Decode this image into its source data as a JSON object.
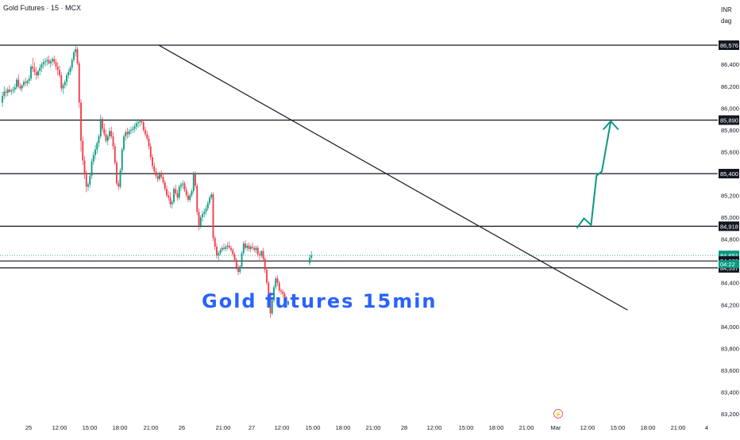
{
  "symbol_label": "Gold Futures · 15 · MCX",
  "currency": "INR",
  "mode": "dag",
  "watermark_text": "Gold  futures  15min",
  "colors": {
    "up": "#089981",
    "down": "#f23645",
    "line": "#131722",
    "arrow": "#089981",
    "grid": "#f0f3fa",
    "axis_text": "#131722",
    "watermark": "#2962ff"
  },
  "chart_data": {
    "type": "candlestick",
    "title": "Gold futures 15min",
    "x_ticks": [
      "25",
      "12:00",
      "15:00",
      "18:00",
      "21:00",
      "26",
      "21:00",
      "27",
      "12:00",
      "15:00",
      "18:00",
      "21:00",
      "28",
      "12:00",
      "15:00",
      "18:00",
      "21:00",
      "Mar",
      "12:00",
      "15:00",
      "18:00",
      "21:00",
      "4"
    ],
    "y_ticks": [
      86600,
      86400,
      86200,
      86000,
      85800,
      85600,
      85400,
      85200,
      85000,
      84800,
      84600,
      84400,
      84200,
      84000,
      83800,
      83600,
      83400,
      83200
    ],
    "ylim": [
      83200,
      86620
    ],
    "horizontal_levels": [
      86576,
      85890,
      85400,
      84918,
      84600,
      84537
    ],
    "current_price": 84651,
    "countdown": "04:22",
    "axis_labels": [
      {
        "value": 86576,
        "text": "86,576",
        "style": "black"
      },
      {
        "value": 85890,
        "text": "85,890",
        "style": "black"
      },
      {
        "value": 85400,
        "text": "85,400",
        "style": "black"
      },
      {
        "value": 84918,
        "text": "84,918",
        "style": "black"
      },
      {
        "value": 84651,
        "text": "84,651",
        "style": "green"
      },
      {
        "value": 84600,
        "text": "84,600",
        "style": "black"
      },
      {
        "value": 84537,
        "text": "84,537",
        "style": "black"
      }
    ],
    "trendline": [
      {
        "bar": 88,
        "price": 86576
      },
      {
        "bar": 350,
        "price": 84150
      }
    ],
    "projection_path": [
      {
        "bar": 322,
        "price": 84900
      },
      {
        "bar": 326,
        "price": 84990
      },
      {
        "bar": 330,
        "price": 84930
      },
      {
        "bar": 333,
        "price": 85380
      },
      {
        "bar": 336,
        "price": 85420
      },
      {
        "bar": 341,
        "price": 85880
      }
    ],
    "candles_ohlc": [
      [
        86050,
        86150,
        86010,
        86110
      ],
      [
        86110,
        86200,
        86080,
        86150
      ],
      [
        86150,
        86180,
        86100,
        86140
      ],
      [
        86140,
        86190,
        86110,
        86170
      ],
      [
        86170,
        86210,
        86140,
        86150
      ],
      [
        86150,
        86180,
        86120,
        86160
      ],
      [
        86160,
        86200,
        86130,
        86170
      ],
      [
        86170,
        86220,
        86140,
        86190
      ],
      [
        86190,
        86280,
        86170,
        86260
      ],
      [
        86260,
        86310,
        86180,
        86200
      ],
      [
        86200,
        86230,
        86160,
        86180
      ],
      [
        86180,
        86220,
        86150,
        86210
      ],
      [
        86210,
        86260,
        86190,
        86240
      ],
      [
        86240,
        86280,
        86200,
        86230
      ],
      [
        86230,
        86260,
        86200,
        86250
      ],
      [
        86250,
        86300,
        86220,
        86270
      ],
      [
        86270,
        86400,
        86250,
        86380
      ],
      [
        86380,
        86460,
        86330,
        86360
      ],
      [
        86360,
        86420,
        86300,
        86330
      ],
      [
        86330,
        86380,
        86260,
        86300
      ],
      [
        86300,
        86350,
        86270,
        86340
      ],
      [
        86340,
        86400,
        86300,
        86370
      ],
      [
        86370,
        86420,
        86330,
        86400
      ],
      [
        86400,
        86450,
        86360,
        86420
      ],
      [
        86420,
        86460,
        86380,
        86430
      ],
      [
        86430,
        86470,
        86390,
        86440
      ],
      [
        86440,
        86480,
        86400,
        86410
      ],
      [
        86410,
        86450,
        86370,
        86430
      ],
      [
        86430,
        86470,
        86390,
        86450
      ],
      [
        86450,
        86480,
        86400,
        86420
      ],
      [
        86420,
        86450,
        86350,
        86380
      ],
      [
        86380,
        86420,
        86300,
        86350
      ],
      [
        86350,
        86390,
        86280,
        86300
      ],
      [
        86300,
        86330,
        86150,
        86180
      ],
      [
        86180,
        86230,
        86130,
        86210
      ],
      [
        86210,
        86260,
        86180,
        86240
      ],
      [
        86240,
        86320,
        86200,
        86300
      ],
      [
        86300,
        86360,
        86270,
        86330
      ],
      [
        86330,
        86390,
        86300,
        86370
      ],
      [
        86370,
        86460,
        86340,
        86440
      ],
      [
        86440,
        86530,
        86420,
        86510
      ],
      [
        86510,
        86576,
        86470,
        86540
      ],
      [
        86540,
        86560,
        86390,
        86410
      ],
      [
        86410,
        86430,
        86000,
        86050
      ],
      [
        86050,
        86080,
        85600,
        85700
      ],
      [
        85700,
        85740,
        85480,
        85520
      ],
      [
        85520,
        85560,
        85350,
        85400
      ],
      [
        85400,
        85430,
        85230,
        85280
      ],
      [
        85280,
        85320,
        85240,
        85300
      ],
      [
        85300,
        85400,
        85270,
        85380
      ],
      [
        85380,
        85540,
        85350,
        85510
      ],
      [
        85510,
        85600,
        85480,
        85570
      ],
      [
        85570,
        85660,
        85530,
        85620
      ],
      [
        85620,
        85700,
        85580,
        85680
      ],
      [
        85680,
        85760,
        85640,
        85740
      ],
      [
        85740,
        85940,
        85720,
        85900
      ],
      [
        85900,
        85920,
        85780,
        85810
      ],
      [
        85810,
        85860,
        85740,
        85760
      ],
      [
        85760,
        85800,
        85680,
        85700
      ],
      [
        85700,
        85760,
        85660,
        85740
      ],
      [
        85740,
        85820,
        85710,
        85790
      ],
      [
        85790,
        85830,
        85720,
        85740
      ],
      [
        85740,
        85780,
        85620,
        85650
      ],
      [
        85650,
        85680,
        85480,
        85500
      ],
      [
        85500,
        85520,
        85290,
        85310
      ],
      [
        85310,
        85340,
        85250,
        85280
      ],
      [
        85280,
        85450,
        85260,
        85430
      ],
      [
        85430,
        85640,
        85410,
        85620
      ],
      [
        85620,
        85760,
        85600,
        85740
      ],
      [
        85740,
        85800,
        85700,
        85780
      ],
      [
        85780,
        85820,
        85720,
        85760
      ],
      [
        85760,
        85810,
        85730,
        85790
      ],
      [
        85790,
        85830,
        85760,
        85800
      ],
      [
        85800,
        85840,
        85770,
        85810
      ],
      [
        85810,
        85860,
        85780,
        85830
      ],
      [
        85830,
        85880,
        85800,
        85860
      ],
      [
        85860,
        85900,
        85820,
        85870
      ],
      [
        85870,
        85890,
        85830,
        85880
      ],
      [
        85880,
        85900,
        85850,
        85870
      ],
      [
        85870,
        85890,
        85780,
        85800
      ],
      [
        85800,
        85830,
        85740,
        85760
      ],
      [
        85760,
        85790,
        85700,
        85720
      ],
      [
        85720,
        85750,
        85620,
        85650
      ],
      [
        85650,
        85680,
        85520,
        85550
      ],
      [
        85550,
        85580,
        85440,
        85470
      ],
      [
        85470,
        85500,
        85390,
        85420
      ],
      [
        85420,
        85450,
        85360,
        85380
      ],
      [
        85380,
        85410,
        85320,
        85350
      ],
      [
        85350,
        85420,
        85330,
        85400
      ],
      [
        85400,
        85430,
        85350,
        85370
      ],
      [
        85370,
        85390,
        85300,
        85320
      ],
      [
        85320,
        85340,
        85240,
        85260
      ],
      [
        85260,
        85290,
        85180,
        85200
      ],
      [
        85200,
        85240,
        85150,
        85180
      ],
      [
        85180,
        85230,
        85090,
        85120
      ],
      [
        85120,
        85160,
        85080,
        85140
      ],
      [
        85140,
        85280,
        85120,
        85260
      ],
      [
        85260,
        85300,
        85200,
        85220
      ],
      [
        85220,
        85250,
        85150,
        85180
      ],
      [
        85180,
        85300,
        85160,
        85280
      ],
      [
        85280,
        85320,
        85240,
        85300
      ],
      [
        85300,
        85340,
        85260,
        85310
      ],
      [
        85310,
        85330,
        85230,
        85250
      ],
      [
        85250,
        85280,
        85180,
        85200
      ],
      [
        85200,
        85230,
        85140,
        85160
      ],
      [
        85160,
        85220,
        85140,
        85200
      ],
      [
        85200,
        85260,
        85180,
        85240
      ],
      [
        85240,
        85420,
        85220,
        85400
      ],
      [
        85400,
        85420,
        85260,
        85290
      ],
      [
        85290,
        85310,
        85020,
        85050
      ],
      [
        85050,
        85080,
        84880,
        84920
      ],
      [
        84920,
        85020,
        84900,
        85000
      ],
      [
        85000,
        85060,
        84960,
        85030
      ],
      [
        85030,
        85080,
        85000,
        85050
      ],
      [
        85050,
        85110,
        85020,
        85080
      ],
      [
        85080,
        85150,
        85060,
        85130
      ],
      [
        85130,
        85200,
        85110,
        85180
      ],
      [
        85180,
        85230,
        85160,
        85210
      ],
      [
        85210,
        85230,
        84780,
        84810
      ],
      [
        84810,
        84830,
        84700,
        84730
      ],
      [
        84730,
        84760,
        84620,
        84650
      ],
      [
        84650,
        84690,
        84600,
        84670
      ],
      [
        84670,
        84720,
        84650,
        84700
      ],
      [
        84700,
        84740,
        84680,
        84720
      ],
      [
        84720,
        84760,
        84690,
        84710
      ],
      [
        84710,
        84750,
        84690,
        84730
      ],
      [
        84730,
        84770,
        84700,
        84740
      ],
      [
        84740,
        84780,
        84710,
        84720
      ],
      [
        84720,
        84740,
        84680,
        84700
      ],
      [
        84700,
        84720,
        84640,
        84660
      ],
      [
        84660,
        84680,
        84590,
        84610
      ],
      [
        84610,
        84630,
        84520,
        84540
      ],
      [
        84540,
        84570,
        84470,
        84500
      ],
      [
        84500,
        84560,
        84480,
        84550
      ],
      [
        84550,
        84690,
        84530,
        84670
      ],
      [
        84670,
        84780,
        84650,
        84760
      ],
      [
        84760,
        84790,
        84700,
        84720
      ],
      [
        84720,
        84760,
        84690,
        84740
      ],
      [
        84740,
        84770,
        84690,
        84710
      ],
      [
        84710,
        84750,
        84680,
        84730
      ],
      [
        84730,
        84770,
        84700,
        84720
      ],
      [
        84720,
        84740,
        84680,
        84700
      ],
      [
        84700,
        84740,
        84670,
        84720
      ],
      [
        84720,
        84740,
        84640,
        84660
      ],
      [
        84660,
        84690,
        84610,
        84650
      ],
      [
        84650,
        84700,
        84630,
        84690
      ],
      [
        84690,
        84720,
        84600,
        84620
      ],
      [
        84620,
        84640,
        84490,
        84520
      ],
      [
        84520,
        84540,
        84380,
        84400
      ],
      [
        84400,
        84420,
        84270,
        84300
      ],
      [
        84300,
        84320,
        84080,
        84120
      ],
      [
        84120,
        84260,
        84100,
        84240
      ],
      [
        84240,
        84380,
        84220,
        84360
      ],
      [
        84360,
        84460,
        84340,
        84440
      ],
      [
        84440,
        84470,
        84370,
        84400
      ],
      [
        84400,
        84420,
        84310,
        84330
      ],
      [
        84330,
        84350,
        84290,
        84320
      ],
      [
        84320,
        84340,
        84270,
        84300
      ],
      [
        84300,
        84320,
        84240,
        84260
      ],
      [
        84260,
        84280,
        84200,
        84220
      ],
      [
        84200,
        84240,
        84190,
        84230
      ],
      [
        84580,
        84660,
        84560,
        84630
      ],
      [
        84630,
        84690,
        84610,
        84651
      ]
    ]
  }
}
